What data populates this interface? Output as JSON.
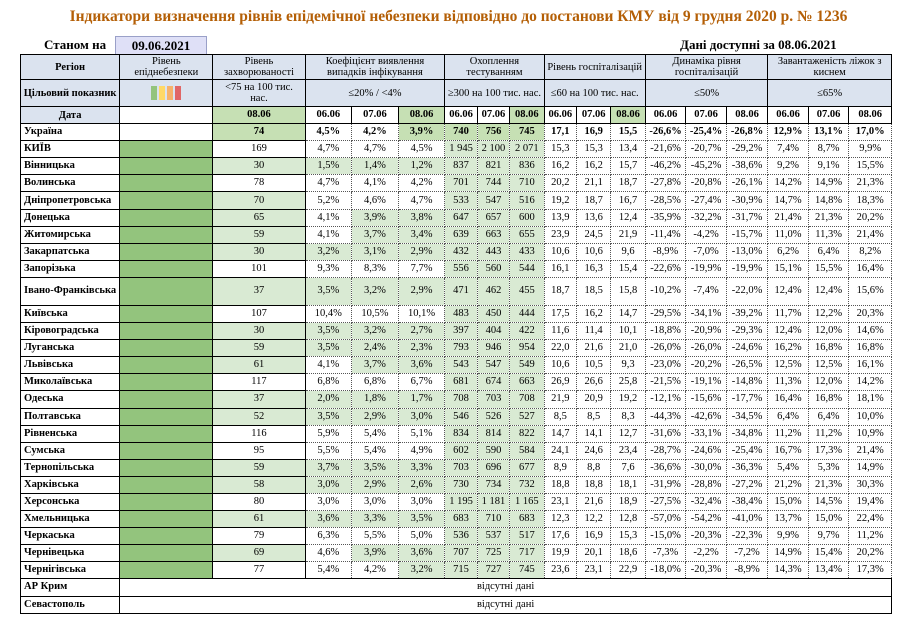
{
  "title": "Індикатори визначення рівнів епідемічної небезпеки відповідно до постанови КМУ від 9 грудня 2020 р. № 1236",
  "as_of_label": "Станом на",
  "as_of_date": "09.06.2021",
  "data_available": "Дані доступні за 08.06.2021",
  "headers": {
    "region": "Регіон",
    "target": "Цільовий показник",
    "date": "Дата",
    "level": "Рівень епіднебезпеки",
    "incidence": "Рівень захворюваності",
    "positivity": "Коефіцієнт виявлення випадків інфікування",
    "testing": "Охоплення тестуванням",
    "hosp": "Рівень госпіталізацій",
    "hosp_dyn": "Динаміка рівня госпіталізацій",
    "oxygen": "Завантаженість ліжок з киснем",
    "t_incidence": "<75 на 100 тис. нас.",
    "t_positivity": "≤20% / <4%",
    "t_testing": "≥300 на 100 тис. нас.",
    "t_hosp": "≤60 на 100 тис. нас.",
    "t_hosp_dyn": "≤50%",
    "t_oxygen": "≤65%",
    "d_incidence": "08.06",
    "d3": [
      "06.06",
      "07.06",
      "08.06"
    ]
  },
  "legend_colors": [
    "#93c47d",
    "#ffd966",
    "#f6b26b",
    "#e06666"
  ],
  "colors": {
    "level_green": "#93c47d",
    "ok_green": "#d9ead3",
    "header": "#dbe3ef",
    "title": "#b45f06"
  },
  "rows": [
    {
      "name": "Україна",
      "inc": "74",
      "inc_g": true,
      "pos": [
        "4,5%",
        "4,2%",
        "3,9%"
      ],
      "pos_g": [
        false,
        false,
        true
      ],
      "test": [
        "740",
        "756",
        "745"
      ],
      "test_g": true,
      "hosp": [
        "17,1",
        "16,9",
        "15,5"
      ],
      "dyn": [
        "-26,6%",
        "-25,4%",
        "-26,8%"
      ],
      "oxy": [
        "12,9%",
        "13,1%",
        "17,0%"
      ]
    },
    {
      "name": "КИЇВ",
      "inc": "169",
      "inc_g": false,
      "pos": [
        "4,7%",
        "4,7%",
        "4,5%"
      ],
      "pos_g": [
        false,
        false,
        false
      ],
      "test": [
        "1 945",
        "2 100",
        "2 071"
      ],
      "test_g": true,
      "hosp": [
        "15,3",
        "15,3",
        "13,4"
      ],
      "dyn": [
        "-21,6%",
        "-20,7%",
        "-29,2%"
      ],
      "oxy": [
        "7,4%",
        "8,7%",
        "9,9%"
      ]
    },
    {
      "name": "Вінницька",
      "inc": "30",
      "inc_g": true,
      "pos": [
        "1,5%",
        "1,4%",
        "1,2%"
      ],
      "pos_g": [
        true,
        true,
        true
      ],
      "test": [
        "837",
        "821",
        "836"
      ],
      "test_g": true,
      "hosp": [
        "16,2",
        "16,2",
        "15,7"
      ],
      "dyn": [
        "-46,2%",
        "-45,2%",
        "-38,6%"
      ],
      "oxy": [
        "9,2%",
        "9,1%",
        "15,5%"
      ]
    },
    {
      "name": "Волинська",
      "inc": "78",
      "inc_g": false,
      "pos": [
        "4,7%",
        "4,1%",
        "4,2%"
      ],
      "pos_g": [
        false,
        false,
        false
      ],
      "test": [
        "701",
        "744",
        "710"
      ],
      "test_g": true,
      "hosp": [
        "20,2",
        "21,1",
        "18,7"
      ],
      "dyn": [
        "-27,8%",
        "-20,8%",
        "-26,1%"
      ],
      "oxy": [
        "14,2%",
        "14,9%",
        "21,3%"
      ]
    },
    {
      "name": "Дніпропетровська",
      "inc": "70",
      "inc_g": true,
      "pos": [
        "5,2%",
        "4,6%",
        "4,7%"
      ],
      "pos_g": [
        false,
        false,
        false
      ],
      "test": [
        "533",
        "547",
        "516"
      ],
      "test_g": true,
      "hosp": [
        "19,2",
        "18,7",
        "16,7"
      ],
      "dyn": [
        "-28,5%",
        "-27,4%",
        "-30,9%"
      ],
      "oxy": [
        "14,7%",
        "14,8%",
        "18,3%"
      ]
    },
    {
      "name": "Донецька",
      "inc": "65",
      "inc_g": true,
      "pos": [
        "4,1%",
        "3,9%",
        "3,8%"
      ],
      "pos_g": [
        false,
        true,
        true
      ],
      "test": [
        "647",
        "657",
        "600"
      ],
      "test_g": true,
      "hosp": [
        "13,9",
        "13,6",
        "12,4"
      ],
      "dyn": [
        "-35,9%",
        "-32,2%",
        "-31,7%"
      ],
      "oxy": [
        "21,4%",
        "21,3%",
        "20,2%"
      ]
    },
    {
      "name": "Житомирська",
      "inc": "59",
      "inc_g": true,
      "pos": [
        "4,1%",
        "3,7%",
        "3,4%"
      ],
      "pos_g": [
        false,
        true,
        true
      ],
      "test": [
        "639",
        "663",
        "655"
      ],
      "test_g": true,
      "hosp": [
        "23,9",
        "24,5",
        "21,9"
      ],
      "dyn": [
        "-11,4%",
        "-4,2%",
        "-15,7%"
      ],
      "oxy": [
        "11,0%",
        "11,3%",
        "21,4%"
      ]
    },
    {
      "name": "Закарпатська",
      "inc": "30",
      "inc_g": true,
      "pos": [
        "3,2%",
        "3,1%",
        "2,9%"
      ],
      "pos_g": [
        true,
        true,
        true
      ],
      "test": [
        "432",
        "443",
        "433"
      ],
      "test_g": true,
      "hosp": [
        "10,6",
        "10,6",
        "9,6"
      ],
      "dyn": [
        "-8,9%",
        "-7,0%",
        "-13,0%"
      ],
      "oxy": [
        "6,2%",
        "6,4%",
        "8,2%"
      ]
    },
    {
      "name": "Запорізька",
      "inc": "101",
      "inc_g": false,
      "pos": [
        "9,3%",
        "8,3%",
        "7,7%"
      ],
      "pos_g": [
        false,
        false,
        false
      ],
      "test": [
        "556",
        "560",
        "544"
      ],
      "test_g": true,
      "hosp": [
        "16,1",
        "16,3",
        "15,4"
      ],
      "dyn": [
        "-22,6%",
        "-19,9%",
        "-19,9%"
      ],
      "oxy": [
        "15,1%",
        "15,5%",
        "16,4%"
      ]
    },
    {
      "name": "Івано-Франківська",
      "inc": "37",
      "inc_g": true,
      "pos": [
        "3,5%",
        "3,2%",
        "2,9%"
      ],
      "pos_g": [
        true,
        true,
        true
      ],
      "test": [
        "471",
        "462",
        "455"
      ],
      "test_g": true,
      "hosp": [
        "18,7",
        "18,5",
        "15,8"
      ],
      "dyn": [
        "-10,2%",
        "-7,4%",
        "-22,0%"
      ],
      "oxy": [
        "12,4%",
        "12,4%",
        "15,6%"
      ]
    },
    {
      "name": "Київська",
      "inc": "107",
      "inc_g": false,
      "pos": [
        "10,4%",
        "10,5%",
        "10,1%"
      ],
      "pos_g": [
        false,
        false,
        false
      ],
      "test": [
        "483",
        "450",
        "444"
      ],
      "test_g": true,
      "hosp": [
        "17,5",
        "16,2",
        "14,7"
      ],
      "dyn": [
        "-29,5%",
        "-34,1%",
        "-39,2%"
      ],
      "oxy": [
        "11,7%",
        "12,2%",
        "20,3%"
      ]
    },
    {
      "name": "Кіровоградська",
      "inc": "30",
      "inc_g": true,
      "pos": [
        "3,5%",
        "3,2%",
        "2,7%"
      ],
      "pos_g": [
        true,
        true,
        true
      ],
      "test": [
        "397",
        "404",
        "422"
      ],
      "test_g": true,
      "hosp": [
        "11,6",
        "11,4",
        "10,1"
      ],
      "dyn": [
        "-18,8%",
        "-20,9%",
        "-29,3%"
      ],
      "oxy": [
        "12,4%",
        "12,0%",
        "14,6%"
      ]
    },
    {
      "name": "Луганська",
      "inc": "59",
      "inc_g": true,
      "pos": [
        "3,5%",
        "2,4%",
        "2,3%"
      ],
      "pos_g": [
        true,
        true,
        true
      ],
      "test": [
        "793",
        "946",
        "954"
      ],
      "test_g": true,
      "hosp": [
        "22,0",
        "21,6",
        "21,0"
      ],
      "dyn": [
        "-26,0%",
        "-26,0%",
        "-24,6%"
      ],
      "oxy": [
        "16,2%",
        "16,8%",
        "16,8%"
      ]
    },
    {
      "name": "Львівська",
      "inc": "61",
      "inc_g": true,
      "pos": [
        "4,1%",
        "3,7%",
        "3,6%"
      ],
      "pos_g": [
        false,
        true,
        true
      ],
      "test": [
        "543",
        "547",
        "549"
      ],
      "test_g": true,
      "hosp": [
        "10,6",
        "10,5",
        "9,3"
      ],
      "dyn": [
        "-23,0%",
        "-20,2%",
        "-26,5%"
      ],
      "oxy": [
        "12,5%",
        "12,5%",
        "16,1%"
      ]
    },
    {
      "name": "Миколаївська",
      "inc": "117",
      "inc_g": false,
      "pos": [
        "6,8%",
        "6,8%",
        "6,7%"
      ],
      "pos_g": [
        false,
        false,
        false
      ],
      "test": [
        "681",
        "674",
        "663"
      ],
      "test_g": true,
      "hosp": [
        "26,9",
        "26,6",
        "25,8"
      ],
      "dyn": [
        "-21,5%",
        "-19,1%",
        "-14,8%"
      ],
      "oxy": [
        "11,3%",
        "12,0%",
        "14,2%"
      ]
    },
    {
      "name": "Одеська",
      "inc": "37",
      "inc_g": true,
      "pos": [
        "2,0%",
        "1,8%",
        "1,7%"
      ],
      "pos_g": [
        true,
        true,
        true
      ],
      "test": [
        "708",
        "703",
        "708"
      ],
      "test_g": true,
      "hosp": [
        "21,9",
        "20,9",
        "19,2"
      ],
      "dyn": [
        "-12,1%",
        "-15,6%",
        "-17,7%"
      ],
      "oxy": [
        "16,4%",
        "16,8%",
        "18,1%"
      ]
    },
    {
      "name": "Полтавська",
      "inc": "52",
      "inc_g": true,
      "pos": [
        "3,5%",
        "2,9%",
        "3,0%"
      ],
      "pos_g": [
        true,
        true,
        true
      ],
      "test": [
        "546",
        "526",
        "527"
      ],
      "test_g": true,
      "hosp": [
        "8,5",
        "8,5",
        "8,3"
      ],
      "dyn": [
        "-44,3%",
        "-42,6%",
        "-34,5%"
      ],
      "oxy": [
        "6,4%",
        "6,4%",
        "10,0%"
      ]
    },
    {
      "name": "Рівненська",
      "inc": "116",
      "inc_g": false,
      "pos": [
        "5,9%",
        "5,4%",
        "5,1%"
      ],
      "pos_g": [
        false,
        false,
        false
      ],
      "test": [
        "834",
        "814",
        "822"
      ],
      "test_g": true,
      "hosp": [
        "14,7",
        "14,1",
        "12,7"
      ],
      "dyn": [
        "-31,6%",
        "-33,1%",
        "-34,8%"
      ],
      "oxy": [
        "11,2%",
        "11,2%",
        "10,9%"
      ]
    },
    {
      "name": "Сумська",
      "inc": "95",
      "inc_g": false,
      "pos": [
        "5,5%",
        "5,4%",
        "4,9%"
      ],
      "pos_g": [
        false,
        false,
        false
      ],
      "test": [
        "602",
        "590",
        "584"
      ],
      "test_g": true,
      "hosp": [
        "24,1",
        "24,6",
        "23,4"
      ],
      "dyn": [
        "-28,7%",
        "-24,6%",
        "-25,4%"
      ],
      "oxy": [
        "16,7%",
        "17,3%",
        "21,4%"
      ]
    },
    {
      "name": "Тернопільська",
      "inc": "59",
      "inc_g": true,
      "pos": [
        "3,7%",
        "3,5%",
        "3,3%"
      ],
      "pos_g": [
        true,
        true,
        true
      ],
      "test": [
        "703",
        "696",
        "677"
      ],
      "test_g": true,
      "hosp": [
        "8,9",
        "8,8",
        "7,6"
      ],
      "dyn": [
        "-36,6%",
        "-30,0%",
        "-36,3%"
      ],
      "oxy": [
        "5,4%",
        "5,3%",
        "14,9%"
      ]
    },
    {
      "name": "Харківська",
      "inc": "58",
      "inc_g": true,
      "pos": [
        "3,0%",
        "2,9%",
        "2,6%"
      ],
      "pos_g": [
        true,
        true,
        true
      ],
      "test": [
        "730",
        "734",
        "732"
      ],
      "test_g": true,
      "hosp": [
        "18,8",
        "18,8",
        "18,1"
      ],
      "dyn": [
        "-31,9%",
        "-28,8%",
        "-27,2%"
      ],
      "oxy": [
        "21,2%",
        "21,3%",
        "30,3%"
      ]
    },
    {
      "name": "Херсонська",
      "inc": "80",
      "inc_g": false,
      "pos": [
        "3,0%",
        "3,0%",
        "3,0%"
      ],
      "pos_g": [
        false,
        false,
        false
      ],
      "test": [
        "1 195",
        "1 181",
        "1 165"
      ],
      "test_g": true,
      "hosp": [
        "23,1",
        "21,6",
        "18,9"
      ],
      "dyn": [
        "-27,5%",
        "-32,4%",
        "-38,4%"
      ],
      "oxy": [
        "15,0%",
        "14,5%",
        "19,4%"
      ]
    },
    {
      "name": "Хмельницька",
      "inc": "61",
      "inc_g": true,
      "pos": [
        "3,6%",
        "3,3%",
        "3,5%"
      ],
      "pos_g": [
        true,
        true,
        true
      ],
      "test": [
        "683",
        "710",
        "683"
      ],
      "test_g": true,
      "hosp": [
        "12,3",
        "12,2",
        "12,8"
      ],
      "dyn": [
        "-57,0%",
        "-54,2%",
        "-41,0%"
      ],
      "oxy": [
        "13,7%",
        "15,0%",
        "22,4%"
      ]
    },
    {
      "name": "Черкаська",
      "inc": "79",
      "inc_g": false,
      "pos": [
        "6,3%",
        "5,5%",
        "5,0%"
      ],
      "pos_g": [
        false,
        false,
        false
      ],
      "test": [
        "536",
        "537",
        "517"
      ],
      "test_g": true,
      "hosp": [
        "17,6",
        "16,9",
        "15,3"
      ],
      "dyn": [
        "-15,0%",
        "-20,3%",
        "-22,3%"
      ],
      "oxy": [
        "9,9%",
        "9,7%",
        "11,2%"
      ]
    },
    {
      "name": "Чернівецька",
      "inc": "69",
      "inc_g": true,
      "pos": [
        "4,6%",
        "3,9%",
        "3,6%"
      ],
      "pos_g": [
        false,
        true,
        true
      ],
      "test": [
        "707",
        "725",
        "717"
      ],
      "test_g": true,
      "hosp": [
        "19,9",
        "20,1",
        "18,6"
      ],
      "dyn": [
        "-7,3%",
        "-2,2%",
        "-7,2%"
      ],
      "oxy": [
        "14,9%",
        "15,4%",
        "20,2%"
      ]
    },
    {
      "name": "Чернігівська",
      "inc": "77",
      "inc_g": false,
      "pos": [
        "5,4%",
        "4,2%",
        "3,2%"
      ],
      "pos_g": [
        false,
        false,
        true
      ],
      "test": [
        "715",
        "727",
        "745"
      ],
      "test_g": true,
      "hosp": [
        "23,6",
        "23,1",
        "22,9"
      ],
      "dyn": [
        "-18,0%",
        "-20,3%",
        "-8,9%"
      ],
      "oxy": [
        "14,3%",
        "13,4%",
        "17,3%"
      ]
    }
  ],
  "no_data_rows": [
    {
      "name": "АР Крим",
      "text": "відсутні дані"
    },
    {
      "name": "Севастополь",
      "text": "відсутні дані"
    }
  ]
}
